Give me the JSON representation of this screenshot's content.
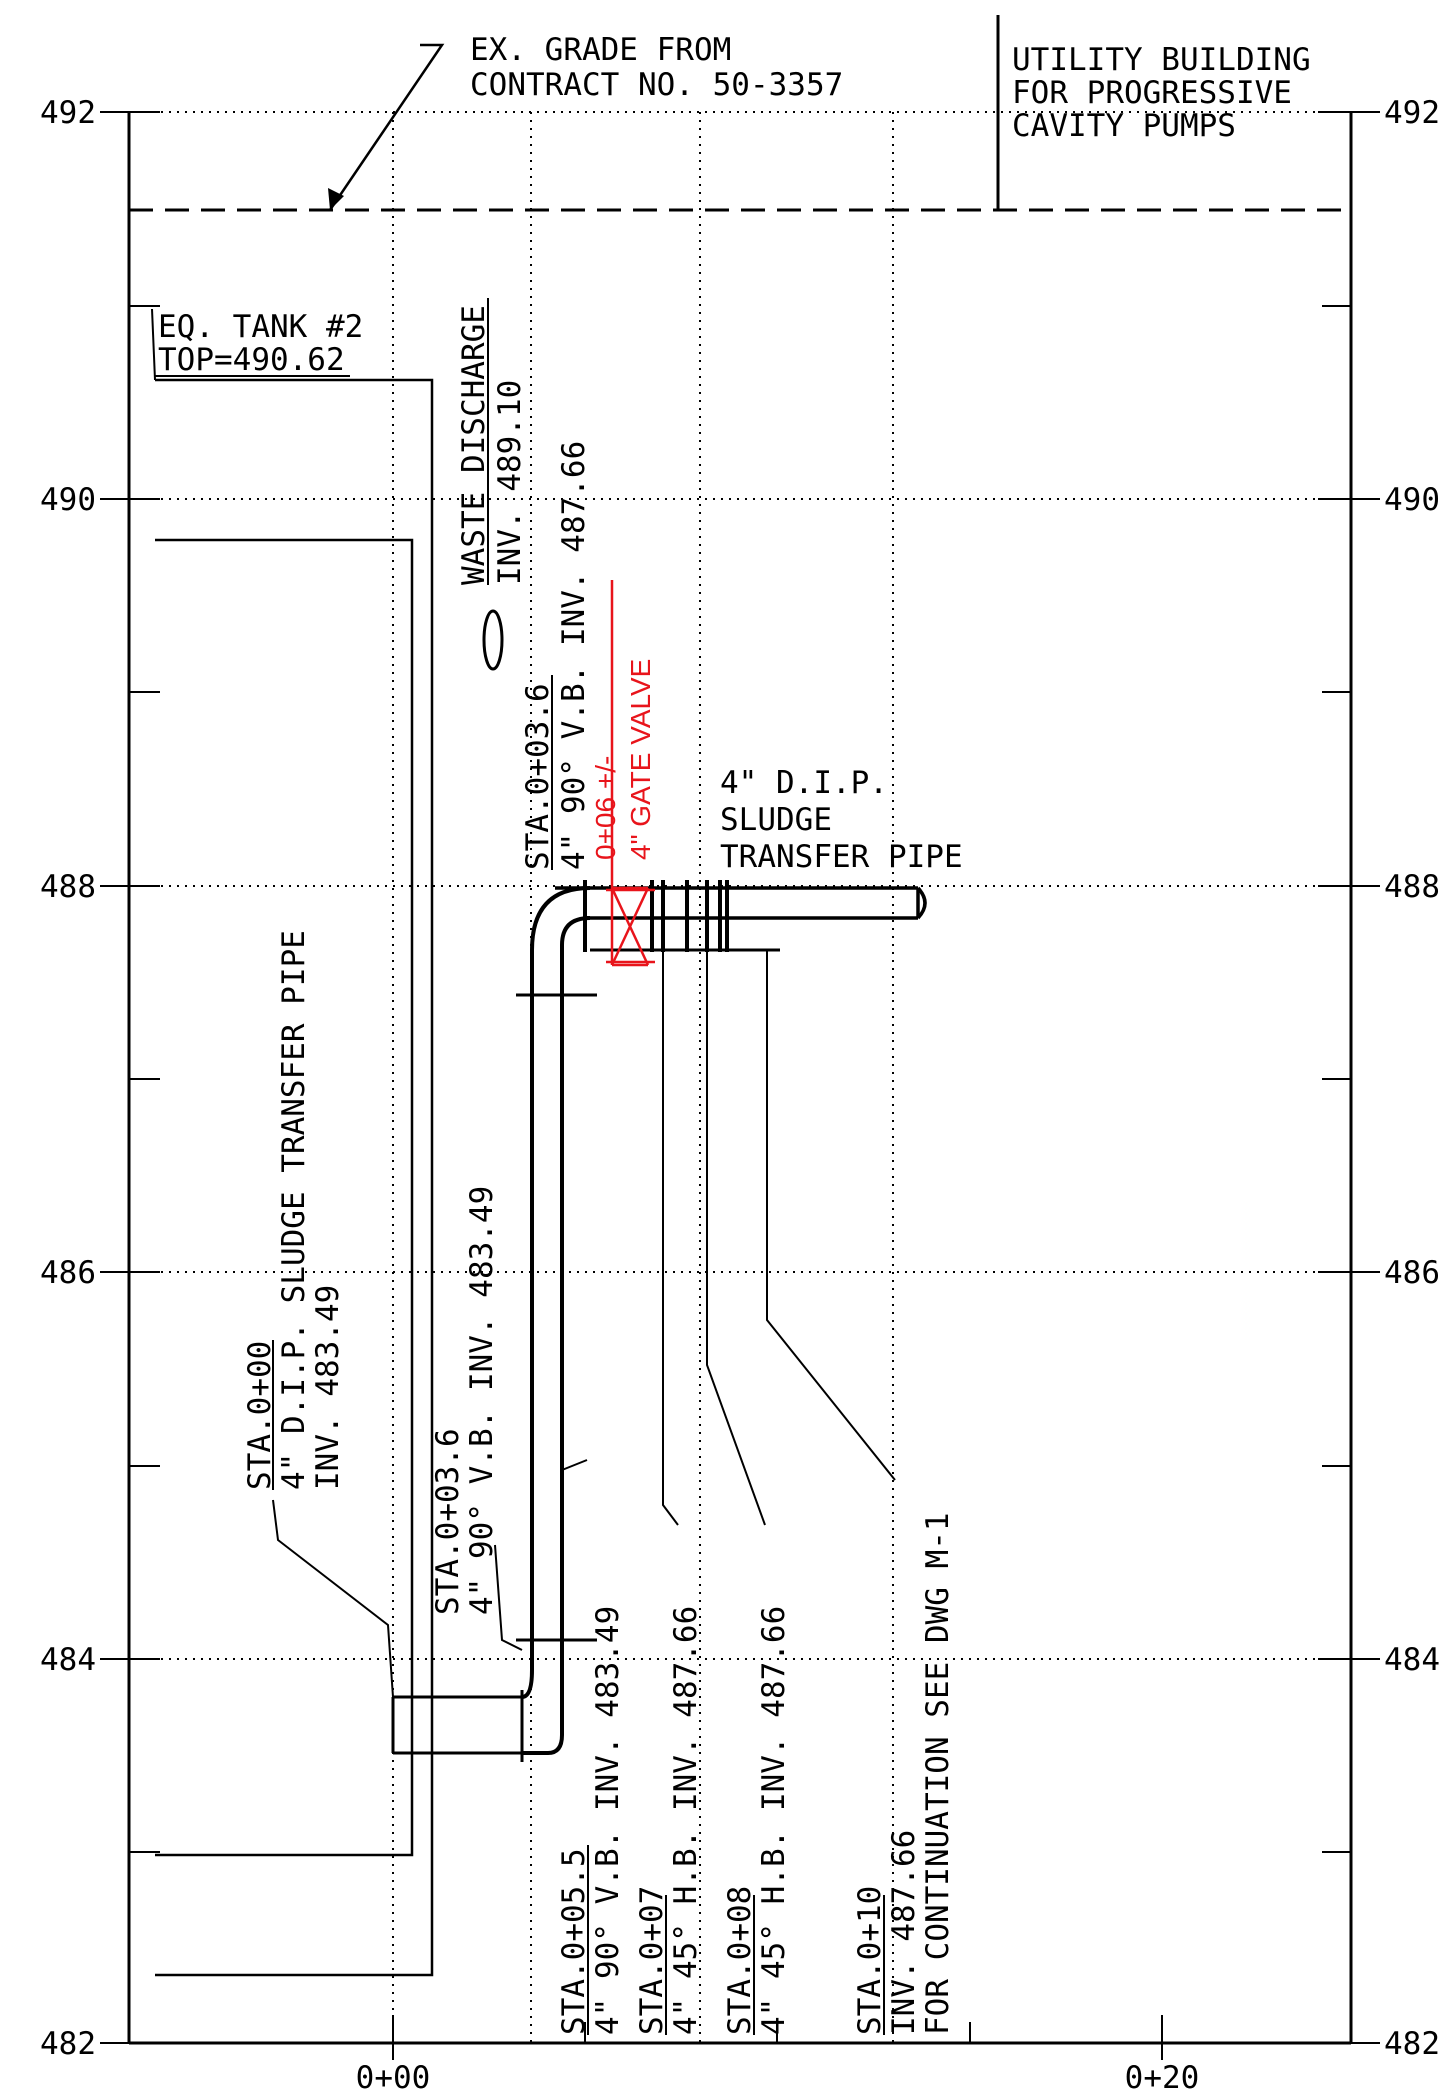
{
  "colors": {
    "ink": "#000000",
    "valve": "#e8141b",
    "grid": "#000000"
  },
  "axis": {
    "elev_left": [
      "492",
      "490",
      "488",
      "486",
      "484",
      "482"
    ],
    "elev_right": [
      "492",
      "490",
      "488",
      "486",
      "484",
      "482"
    ],
    "stations": [
      "0+00",
      "0+20"
    ]
  },
  "labels": {
    "ex_grade_1": "EX. GRADE FROM",
    "ex_grade_2": "CONTRACT NO. 50-3357",
    "utility_1": "UTILITY BUILDING",
    "utility_2": "FOR PROGRESSIVE",
    "utility_3": "CAVITY PUMPS",
    "eq_tank_1": "EQ. TANK #2",
    "eq_tank_2": "TOP=490.62",
    "waste_1": "WASTE DISCHARGE",
    "waste_2": "INV. 489.10",
    "sta036_top_1": "STA.0+03.6",
    "sta036_top_2": "4\" 90° V.B. INV. 487.66",
    "valve_1": "0+06 +/-",
    "valve_2": "4\" GATE VALVE",
    "dip_1": "4\" D.I.P.",
    "dip_2": "SLUDGE",
    "dip_3": "TRANSFER PIPE",
    "sta000_1": "STA.0+00",
    "sta000_2": "4\" D.I.P. SLUDGE TRANSFER PIPE",
    "sta000_3": "INV. 483.49",
    "sta036_bot_1": "STA.0+03.6",
    "sta036_bot_2": "4\" 90° V.B. INV. 483.49",
    "sta055_1": "STA.0+05.5",
    "sta055_2": "4\" 90° V.B. INV. 483.49",
    "sta07_1": "STA.0+07",
    "sta07_2": "4\" 45° H.B. INV. 487.66",
    "sta08_1": "STA.0+08",
    "sta08_2": "4\" 45° H.B. INV. 487.66",
    "sta10_1": "STA.0+10",
    "sta10_2": "INV. 487.66",
    "sta10_3": "FOR CONTINUATION SEE DWG M-1"
  }
}
